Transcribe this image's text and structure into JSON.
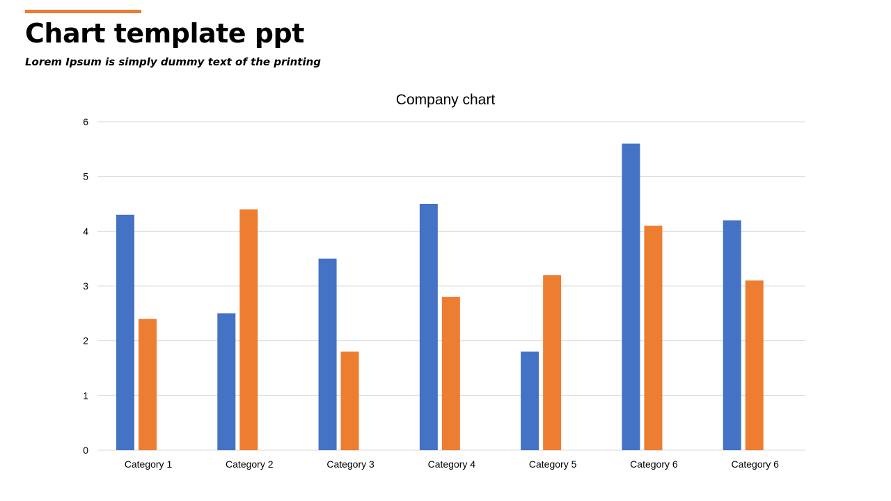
{
  "slide": {
    "title": "Chart template ppt",
    "subtitle": "Lorem Ipsum  is simply dummy text of the printing"
  },
  "colors": {
    "accent": "#ED7D31",
    "series_1": "#4472C4",
    "series_2": "#ED7D31",
    "gridline": "#D9D9D9",
    "text": "#000000"
  },
  "chart_data": {
    "type": "bar",
    "title": "Company chart",
    "xlabel": "",
    "ylabel": "",
    "categories": [
      "Category 1",
      "Category 2",
      "Category 3",
      "Category 4",
      "Category 5",
      "Category 6",
      "Category 6"
    ],
    "series": [
      {
        "values": [
          4.3,
          2.5,
          3.5,
          4.5,
          1.8,
          5.6,
          4.2
        ]
      },
      {
        "values": [
          2.4,
          4.4,
          1.8,
          2.8,
          3.2,
          4.1,
          3.1
        ]
      }
    ],
    "ylim": [
      0,
      6
    ],
    "yticks": [
      "0",
      "1",
      "2",
      "3",
      "4",
      "5",
      "6"
    ],
    "grid": true,
    "legend": "none"
  }
}
